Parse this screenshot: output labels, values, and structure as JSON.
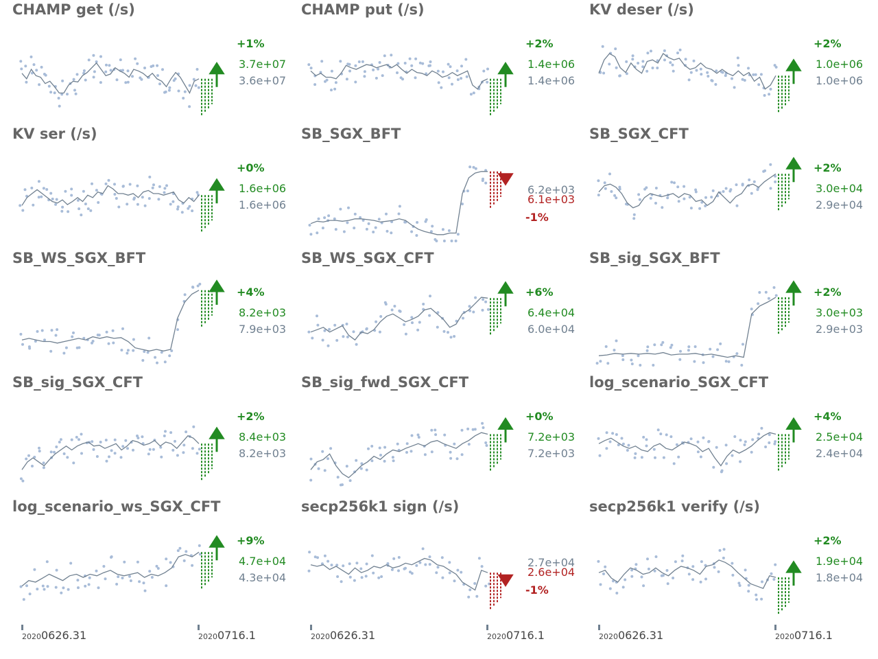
{
  "colors": {
    "up": "#228b22",
    "down": "#b22222",
    "line": "#708090",
    "points": "#a8bcd8",
    "title": "#666666"
  },
  "x_axis": [
    {
      "year": "2020",
      "start": "0626.31",
      "end_year": "2020",
      "end": "0716.1"
    },
    {
      "year": "2020",
      "start": "0626.31",
      "end_year": "2020",
      "end": "0716.1"
    },
    {
      "year": "2020",
      "start": "0626.31",
      "end_year": "2020",
      "end": "0716.1"
    }
  ],
  "chart_data": [
    {
      "type": "scatter",
      "title": "CHAMP get (/s)",
      "pct": "+1%",
      "value_latest": "3.7e+07",
      "value_prev": "3.6e+07",
      "direction": "up",
      "trend": [
        0.55,
        0.48,
        0.6,
        0.52,
        0.5,
        0.42,
        0.45,
        0.38,
        0.3,
        0.3,
        0.4,
        0.45,
        0.44,
        0.52,
        0.56,
        0.62,
        0.68,
        0.6,
        0.52,
        0.54,
        0.62,
        0.58,
        0.55,
        0.5,
        0.6,
        0.58,
        0.55,
        0.5,
        0.55,
        0.48,
        0.45,
        0.38,
        0.48,
        0.56,
        0.5,
        0.4,
        0.3,
        0.45,
        0.48
      ]
    },
    {
      "type": "scatter",
      "title": "CHAMP put (/s)",
      "pct": "+2%",
      "value_latest": "1.4e+06",
      "value_prev": "1.4e+06",
      "direction": "up",
      "trend": [
        0.58,
        0.52,
        0.55,
        0.5,
        0.5,
        0.48,
        0.55,
        0.65,
        0.62,
        0.6,
        0.63,
        0.66,
        0.65,
        0.62,
        0.64,
        0.66,
        0.62,
        0.66,
        0.6,
        0.55,
        0.6,
        0.56,
        0.55,
        0.52,
        0.58,
        0.55,
        0.5,
        0.52,
        0.56,
        0.52,
        0.55,
        0.58,
        0.4,
        0.35,
        0.45,
        0.48
      ]
    },
    {
      "type": "scatter",
      "title": "KV deser (/s)",
      "pct": "+2%",
      "value_latest": "1.0e+06",
      "value_prev": "1.0e+06",
      "direction": "up",
      "trend": [
        0.55,
        0.72,
        0.8,
        0.76,
        0.62,
        0.56,
        0.68,
        0.6,
        0.55,
        0.7,
        0.72,
        0.68,
        0.8,
        0.75,
        0.72,
        0.74,
        0.65,
        0.6,
        0.62,
        0.68,
        0.62,
        0.6,
        0.55,
        0.6,
        0.55,
        0.52,
        0.58,
        0.52,
        0.56,
        0.45,
        0.5,
        0.35,
        0.4,
        0.52
      ]
    },
    {
      "type": "scatter",
      "title": "KV ser (/s)",
      "pct": "+0%",
      "value_latest": "1.6e+06",
      "value_prev": "1.6e+06",
      "direction": "up",
      "trend": [
        0.45,
        0.55,
        0.6,
        0.65,
        0.6,
        0.55,
        0.5,
        0.48,
        0.52,
        0.46,
        0.5,
        0.55,
        0.5,
        0.58,
        0.55,
        0.62,
        0.6,
        0.7,
        0.66,
        0.6,
        0.6,
        0.58,
        0.6,
        0.55,
        0.62,
        0.64,
        0.6,
        0.6,
        0.58,
        0.6,
        0.62,
        0.52,
        0.48,
        0.55,
        0.5,
        0.58
      ]
    },
    {
      "type": "scatter",
      "title": "SB_SGX_BFT",
      "pct": "-1%",
      "value_latest": "6.1e+03",
      "value_prev": "6.2e+03",
      "direction": "down",
      "trend": [
        0.22,
        0.25,
        0.24,
        0.26,
        0.26,
        0.25,
        0.26,
        0.28,
        0.28,
        0.27,
        0.26,
        0.24,
        0.25,
        0.26,
        0.28,
        0.26,
        0.2,
        0.15,
        0.12,
        0.1,
        0.08,
        0.08,
        0.1,
        0.1,
        0.6,
        0.8,
        0.86,
        0.88,
        0.88
      ]
    },
    {
      "type": "scatter",
      "title": "SB_SGX_CFT",
      "pct": "+2%",
      "value_latest": "3.0e+04",
      "value_prev": "2.9e+04",
      "direction": "up",
      "trend": [
        0.62,
        0.7,
        0.72,
        0.68,
        0.6,
        0.48,
        0.42,
        0.45,
        0.55,
        0.6,
        0.58,
        0.56,
        0.58,
        0.6,
        0.55,
        0.6,
        0.58,
        0.5,
        0.52,
        0.45,
        0.5,
        0.62,
        0.55,
        0.48,
        0.56,
        0.6,
        0.7,
        0.72,
        0.68,
        0.75,
        0.8,
        0.85
      ]
    },
    {
      "type": "scatter",
      "title": "SB_WS_SGX_BFT",
      "pct": "+4%",
      "value_latest": "8.2e+03",
      "value_prev": "7.9e+03",
      "direction": "up",
      "trend": [
        0.32,
        0.34,
        0.32,
        0.3,
        0.3,
        0.28,
        0.3,
        0.32,
        0.34,
        0.32,
        0.36,
        0.34,
        0.36,
        0.34,
        0.35,
        0.3,
        0.22,
        0.2,
        0.18,
        0.2,
        0.18,
        0.2,
        0.6,
        0.8,
        0.9,
        0.95
      ]
    },
    {
      "type": "scatter",
      "title": "SB_WS_SGX_CFT",
      "pct": "+6%",
      "value_latest": "6.4e+04",
      "value_prev": "6.0e+04",
      "direction": "up",
      "trend": [
        0.42,
        0.45,
        0.48,
        0.42,
        0.46,
        0.5,
        0.38,
        0.32,
        0.42,
        0.4,
        0.45,
        0.55,
        0.62,
        0.65,
        0.6,
        0.55,
        0.58,
        0.62,
        0.7,
        0.72,
        0.65,
        0.58,
        0.48,
        0.52,
        0.65,
        0.7,
        0.78,
        0.86,
        0.85
      ]
    },
    {
      "type": "scatter",
      "title": "SB_sig_SGX_BFT",
      "pct": "+2%",
      "value_latest": "3.0e+03",
      "value_prev": "2.9e+03",
      "direction": "up",
      "trend": [
        0.12,
        0.13,
        0.15,
        0.14,
        0.15,
        0.14,
        0.15,
        0.14,
        0.16,
        0.13,
        0.14,
        0.14,
        0.15,
        0.13,
        0.14,
        0.12,
        0.1,
        0.12,
        0.1,
        0.65,
        0.75,
        0.8,
        0.86
      ]
    },
    {
      "type": "scatter",
      "title": "SB_sig_SGX_CFT",
      "pct": "+2%",
      "value_latest": "8.4e+03",
      "value_prev": "8.2e+03",
      "direction": "up",
      "trend": [
        0.25,
        0.35,
        0.4,
        0.35,
        0.3,
        0.38,
        0.45,
        0.5,
        0.55,
        0.5,
        0.55,
        0.58,
        0.6,
        0.55,
        0.56,
        0.52,
        0.55,
        0.58,
        0.5,
        0.55,
        0.62,
        0.6,
        0.56,
        0.58,
        0.62,
        0.55,
        0.6,
        0.58,
        0.52,
        0.6,
        0.68,
        0.65,
        0.58
      ]
    },
    {
      "type": "scatter",
      "title": "SB_sig_fwd_SGX_CFT",
      "pct": "+0%",
      "value_latest": "7.2e+03",
      "value_prev": "7.2e+03",
      "direction": "up",
      "trend": [
        0.25,
        0.35,
        0.38,
        0.45,
        0.3,
        0.2,
        0.15,
        0.22,
        0.3,
        0.35,
        0.42,
        0.38,
        0.45,
        0.5,
        0.48,
        0.52,
        0.55,
        0.58,
        0.55,
        0.6,
        0.62,
        0.58,
        0.55,
        0.52,
        0.58,
        0.62,
        0.68,
        0.72,
        0.7
      ]
    },
    {
      "type": "scatter",
      "title": "log_scenario_SGX_CFT",
      "pct": "+4%",
      "value_latest": "2.5e+04",
      "value_prev": "2.4e+04",
      "direction": "up",
      "trend": [
        0.58,
        0.62,
        0.65,
        0.6,
        0.55,
        0.52,
        0.55,
        0.5,
        0.48,
        0.55,
        0.58,
        0.52,
        0.5,
        0.55,
        0.6,
        0.58,
        0.55,
        0.48,
        0.52,
        0.4,
        0.3,
        0.42,
        0.5,
        0.46,
        0.5,
        0.55,
        0.62,
        0.68,
        0.72,
        0.7
      ]
    },
    {
      "type": "scatter",
      "title": "log_scenario_ws_SGX_CFT",
      "pct": "+9%",
      "value_latest": "4.7e+04",
      "value_prev": "4.3e+04",
      "direction": "up",
      "trend": [
        0.35,
        0.42,
        0.4,
        0.45,
        0.5,
        0.46,
        0.42,
        0.48,
        0.5,
        0.46,
        0.5,
        0.48,
        0.52,
        0.55,
        0.5,
        0.48,
        0.5,
        0.52,
        0.46,
        0.5,
        0.48,
        0.52,
        0.58,
        0.72,
        0.75,
        0.72,
        0.78
      ]
    },
    {
      "type": "scatter",
      "title": "secp256k1 sign (/s)",
      "pct": "-1%",
      "value_latest": "2.6e+04",
      "value_prev": "2.7e+04",
      "direction": "down",
      "trend": [
        0.62,
        0.6,
        0.62,
        0.56,
        0.6,
        0.55,
        0.5,
        0.58,
        0.52,
        0.55,
        0.6,
        0.58,
        0.62,
        0.58,
        0.6,
        0.64,
        0.62,
        0.66,
        0.7,
        0.68,
        0.62,
        0.6,
        0.55,
        0.5,
        0.4,
        0.35,
        0.3,
        0.55,
        0.52
      ]
    },
    {
      "type": "scatter",
      "title": "secp256k1 verify (/s)",
      "pct": "+2%",
      "value_latest": "1.9e+04",
      "value_prev": "1.8e+04",
      "direction": "up",
      "trend": [
        0.52,
        0.55,
        0.45,
        0.4,
        0.5,
        0.58,
        0.55,
        0.5,
        0.52,
        0.58,
        0.52,
        0.48,
        0.55,
        0.6,
        0.58,
        0.55,
        0.5,
        0.6,
        0.62,
        0.68,
        0.65,
        0.6,
        0.52,
        0.45,
        0.38,
        0.35,
        0.32,
        0.48,
        0.46
      ]
    }
  ]
}
